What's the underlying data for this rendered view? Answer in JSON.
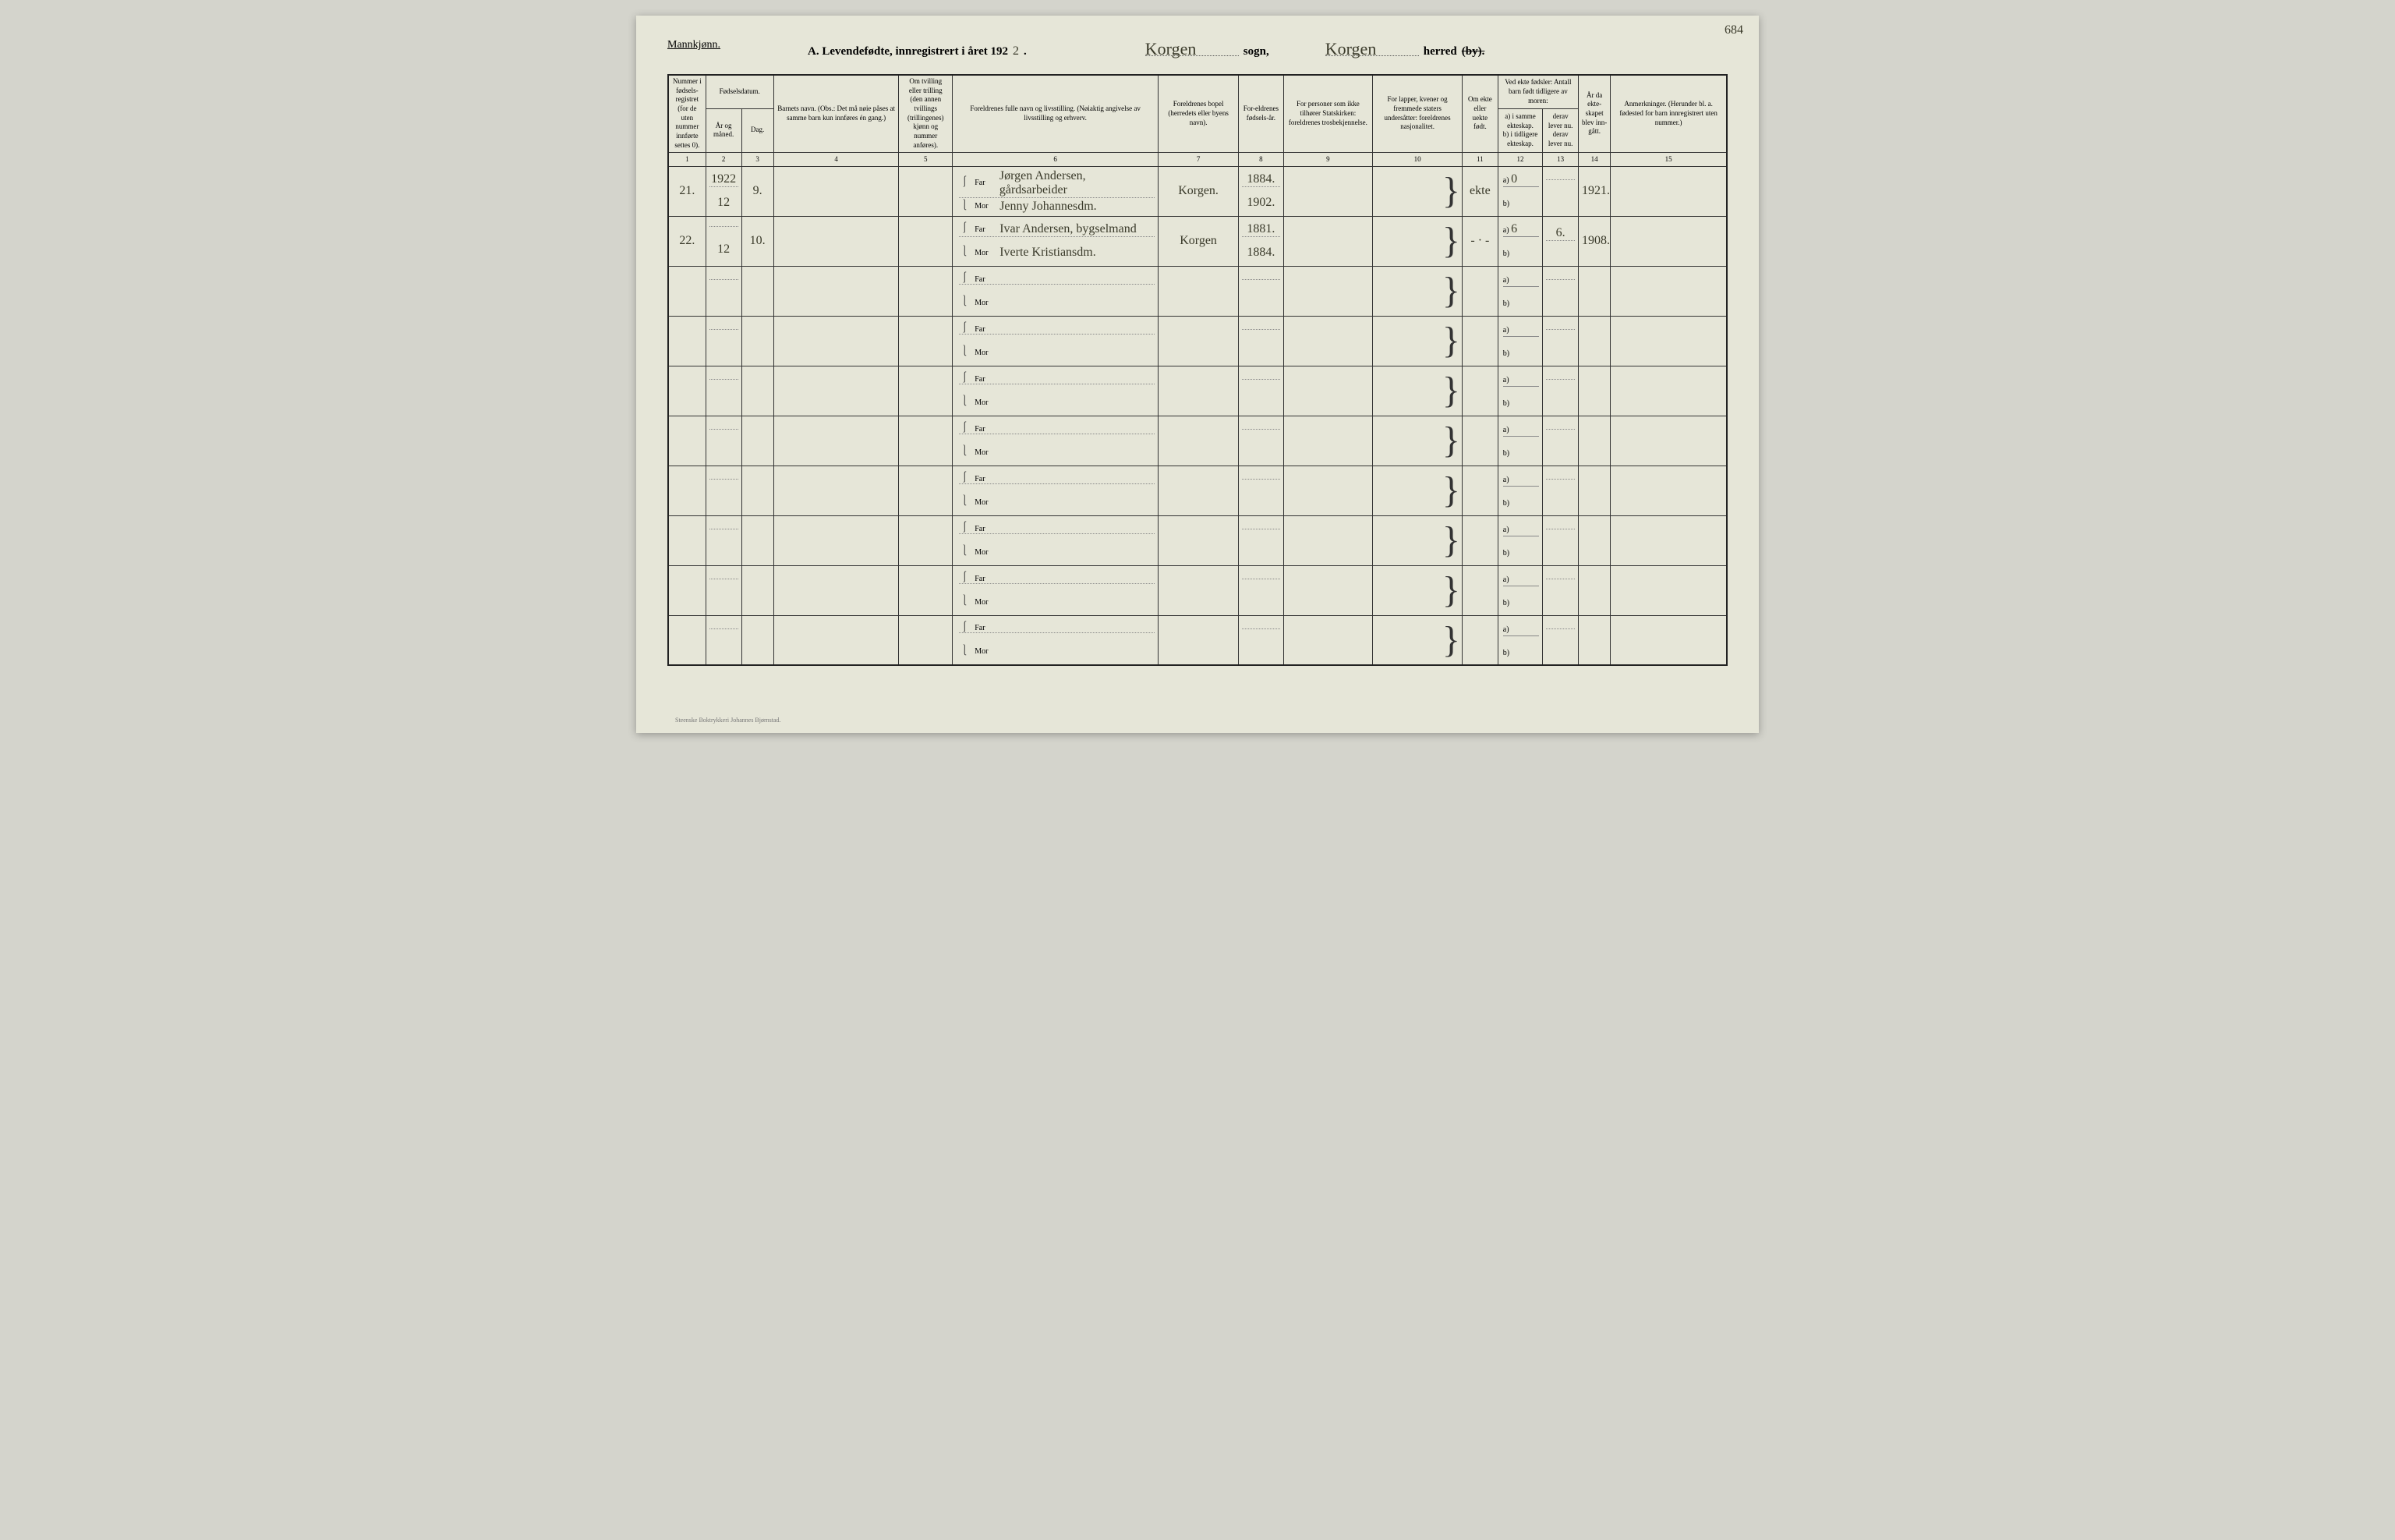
{
  "header": {
    "gender": "Mannkjønn.",
    "title_prefix": "A.  Levendefødte, innregistrert i året 192",
    "year_suffix": "2",
    "sogn_label": "sogn,",
    "sogn_value": "Korgen",
    "herred_label": "herred",
    "herred_value": "Korgen",
    "by_struck": "(by).",
    "page_number": "684"
  },
  "columns": {
    "c1": "Nummer i fødsels-registret (for de uten nummer innførte settes 0).",
    "c2_group": "Fødselsdatum.",
    "c2a": "År og måned.",
    "c2b": "Dag.",
    "c4": "Barnets navn.\n(Obs.: Det må nøie påses at samme barn kun innføres én gang.)",
    "c5": "Om tvilling eller trilling (den annen tvillings (trillingenes) kjønn og nummer anføres).",
    "c6": "Foreldrenes fulle navn og livsstilling.\n(Nøiaktig angivelse av livsstilling og erhverv.",
    "c7": "Foreldrenes bopel (herredets eller byens navn).",
    "c8": "For-eldrenes fødsels-år.",
    "c9": "For personer som ikke tilhører Statskirken: foreldrenes trosbekjennelse.",
    "c10": "For lapper, kvener og fremmede staters undersåtter: foreldrenes nasjonalitet.",
    "c11": "Om ekte eller uekte født.",
    "c12_group": "Ved ekte fødsler: Antall barn født tidligere av moren:",
    "c12a": "a) i samme ekteskap.",
    "c12b": "b) i tidligere ekteskap.",
    "c13a": "derav lever nu.",
    "c13b": "derav lever nu.",
    "c14": "År da ekte-skapet blev inn-gått.",
    "c15": "Anmerkninger.\n(Herunder bl. a. fødested for barn innregistrert uten nummer.)"
  },
  "col_numbers": [
    "1",
    "2",
    "3",
    "4",
    "5",
    "6",
    "7",
    "8",
    "9",
    "10",
    "11",
    "12",
    "13",
    "14",
    "15"
  ],
  "rows": [
    {
      "num": "21.",
      "year_month_top": "1922",
      "year_month": "12",
      "day": "9.",
      "far": "Jørgen Andersen, gårdsarbeider",
      "mor": "Jenny Johannesdm.",
      "bopel": "Korgen.",
      "far_year": "1884.",
      "mor_year": "1902.",
      "ekte": "ekte",
      "a_val": "0",
      "b_val": "",
      "derav_a": "",
      "derav_b": "",
      "marriage_year": "1921."
    },
    {
      "num": "22.",
      "year_month_top": "",
      "year_month": "12",
      "day": "10.",
      "far": "Ivar Andersen, bygselmand",
      "mor": "Iverte Kristiansdm.",
      "bopel": "Korgen",
      "far_year": "1881.",
      "mor_year": "1884.",
      "ekte": "- · -",
      "a_val": "6",
      "b_val": "",
      "derav_a": "6.",
      "derav_b": "",
      "marriage_year": "1908."
    },
    {
      "num": "",
      "year_month_top": "",
      "year_month": "",
      "day": "",
      "far": "",
      "mor": "",
      "bopel": "",
      "far_year": "",
      "mor_year": "",
      "ekte": "",
      "a_val": "",
      "b_val": "",
      "derav_a": "",
      "derav_b": "",
      "marriage_year": ""
    },
    {
      "num": "",
      "year_month_top": "",
      "year_month": "",
      "day": "",
      "far": "",
      "mor": "",
      "bopel": "",
      "far_year": "",
      "mor_year": "",
      "ekte": "",
      "a_val": "",
      "b_val": "",
      "derav_a": "",
      "derav_b": "",
      "marriage_year": ""
    },
    {
      "num": "",
      "year_month_top": "",
      "year_month": "",
      "day": "",
      "far": "",
      "mor": "",
      "bopel": "",
      "far_year": "",
      "mor_year": "",
      "ekte": "",
      "a_val": "",
      "b_val": "",
      "derav_a": "",
      "derav_b": "",
      "marriage_year": ""
    },
    {
      "num": "",
      "year_month_top": "",
      "year_month": "",
      "day": "",
      "far": "",
      "mor": "",
      "bopel": "",
      "far_year": "",
      "mor_year": "",
      "ekte": "",
      "a_val": "",
      "b_val": "",
      "derav_a": "",
      "derav_b": "",
      "marriage_year": ""
    },
    {
      "num": "",
      "year_month_top": "",
      "year_month": "",
      "day": "",
      "far": "",
      "mor": "",
      "bopel": "",
      "far_year": "",
      "mor_year": "",
      "ekte": "",
      "a_val": "",
      "b_val": "",
      "derav_a": "",
      "derav_b": "",
      "marriage_year": ""
    },
    {
      "num": "",
      "year_month_top": "",
      "year_month": "",
      "day": "",
      "far": "",
      "mor": "",
      "bopel": "",
      "far_year": "",
      "mor_year": "",
      "ekte": "",
      "a_val": "",
      "b_val": "",
      "derav_a": "",
      "derav_b": "",
      "marriage_year": ""
    },
    {
      "num": "",
      "year_month_top": "",
      "year_month": "",
      "day": "",
      "far": "",
      "mor": "",
      "bopel": "",
      "far_year": "",
      "mor_year": "",
      "ekte": "",
      "a_val": "",
      "b_val": "",
      "derav_a": "",
      "derav_b": "",
      "marriage_year": ""
    },
    {
      "num": "",
      "year_month_top": "",
      "year_month": "",
      "day": "",
      "far": "",
      "mor": "",
      "bopel": "",
      "far_year": "",
      "mor_year": "",
      "ekte": "",
      "a_val": "",
      "b_val": "",
      "derav_a": "",
      "derav_b": "",
      "marriage_year": ""
    }
  ],
  "footer": "Steenske Boktrykkeri Johannes Bjørnstad.",
  "styling": {
    "page_bg": "#e6e6d8",
    "border_color": "#222",
    "text_color": "#222",
    "handwriting_color": "#3a3a2a",
    "printed_font": "Georgia, serif",
    "handwriting_font": "Brush Script MT, cursive"
  },
  "labels": {
    "far": "Far",
    "mor": "Mor",
    "a": "a)",
    "b": "b)"
  }
}
